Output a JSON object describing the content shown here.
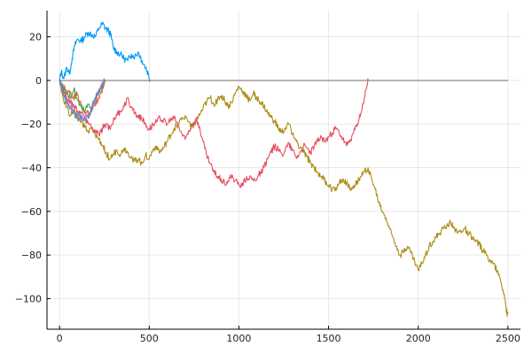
{
  "chart_data": {
    "type": "line",
    "title": "",
    "xlabel": "",
    "ylabel": "",
    "xlim": [
      -70,
      2570
    ],
    "ylim": [
      -114,
      32
    ],
    "xticks": [
      0,
      500,
      1000,
      1500,
      2000,
      2500
    ],
    "xtick_labels": [
      "0",
      "500",
      "1000",
      "1500",
      "2000",
      "2500"
    ],
    "yticks": [
      20,
      0,
      -20,
      -40,
      -60,
      -80,
      -100
    ],
    "ytick_labels": [
      "20",
      "0",
      "−20",
      "−40",
      "−60",
      "−80",
      "−100"
    ],
    "grid": true,
    "legend": "none",
    "series": [
      {
        "color": "#009AFA",
        "points": [
          [
            0,
            0
          ],
          [
            10,
            4
          ],
          [
            25,
            1
          ],
          [
            40,
            6
          ],
          [
            55,
            3
          ],
          [
            70,
            10
          ],
          [
            85,
            16
          ],
          [
            100,
            19
          ],
          [
            120,
            18
          ],
          [
            140,
            20
          ],
          [
            160,
            22
          ],
          [
            180,
            21
          ],
          [
            200,
            20
          ],
          [
            220,
            24
          ],
          [
            240,
            26
          ],
          [
            255,
            24
          ],
          [
            270,
            23
          ],
          [
            285,
            21
          ],
          [
            300,
            15
          ],
          [
            320,
            13
          ],
          [
            340,
            12
          ],
          [
            360,
            10
          ],
          [
            380,
            9
          ],
          [
            400,
            12
          ],
          [
            420,
            11
          ],
          [
            440,
            13
          ],
          [
            460,
            9
          ],
          [
            480,
            6
          ],
          [
            495,
            3
          ],
          [
            505,
            0
          ]
        ]
      },
      {
        "color": "#E26F46",
        "points": [
          [
            0,
            0
          ],
          [
            15,
            -4
          ],
          [
            30,
            -3
          ],
          [
            45,
            -6
          ],
          [
            60,
            -5
          ],
          [
            75,
            -8
          ],
          [
            90,
            -7
          ],
          [
            100,
            -6
          ],
          [
            115,
            -10
          ],
          [
            130,
            -13
          ],
          [
            150,
            -15
          ],
          [
            170,
            -16
          ],
          [
            185,
            -13
          ],
          [
            200,
            -10
          ],
          [
            215,
            -9
          ],
          [
            230,
            -6
          ],
          [
            245,
            -3
          ],
          [
            255,
            0
          ]
        ]
      },
      {
        "color": "#3EA44E",
        "points": [
          [
            0,
            0
          ],
          [
            20,
            -3
          ],
          [
            40,
            -6
          ],
          [
            60,
            -8
          ],
          [
            80,
            -4
          ],
          [
            100,
            -9
          ],
          [
            120,
            -12
          ],
          [
            140,
            -14
          ],
          [
            160,
            -11
          ],
          [
            180,
            -13
          ],
          [
            200,
            -8
          ],
          [
            220,
            -5
          ],
          [
            240,
            -3
          ],
          [
            250,
            0
          ]
        ]
      },
      {
        "color": "#C371D2",
        "points": [
          [
            0,
            0
          ],
          [
            20,
            -5
          ],
          [
            40,
            -9
          ],
          [
            60,
            -12
          ],
          [
            80,
            -14
          ],
          [
            100,
            -16
          ],
          [
            120,
            -18
          ],
          [
            140,
            -17
          ],
          [
            160,
            -15
          ],
          [
            180,
            -13
          ],
          [
            200,
            -8
          ],
          [
            220,
            -4
          ],
          [
            240,
            -2
          ],
          [
            250,
            0
          ]
        ]
      },
      {
        "color": "#AC8D18",
        "points": [
          [
            0,
            0
          ],
          [
            20,
            -8
          ],
          [
            40,
            -12
          ],
          [
            60,
            -16
          ],
          [
            80,
            -14
          ],
          [
            100,
            -17
          ],
          [
            120,
            -19
          ],
          [
            140,
            -21
          ],
          [
            160,
            -24
          ],
          [
            180,
            -22
          ],
          [
            200,
            -25
          ],
          [
            220,
            -27
          ],
          [
            240,
            -30
          ],
          [
            260,
            -33
          ],
          [
            280,
            -36
          ],
          [
            300,
            -34
          ],
          [
            320,
            -32
          ],
          [
            340,
            -34
          ],
          [
            360,
            -31
          ],
          [
            380,
            -33
          ],
          [
            400,
            -35
          ],
          [
            420,
            -37
          ],
          [
            440,
            -36
          ],
          [
            460,
            -38
          ],
          [
            480,
            -34
          ],
          [
            500,
            -36
          ],
          [
            520,
            -32
          ],
          [
            540,
            -30
          ],
          [
            560,
            -33
          ],
          [
            580,
            -31
          ],
          [
            600,
            -28
          ],
          [
            620,
            -25
          ],
          [
            640,
            -22
          ],
          [
            660,
            -20
          ],
          [
            680,
            -18
          ],
          [
            700,
            -16
          ],
          [
            720,
            -19
          ],
          [
            740,
            -21
          ],
          [
            760,
            -19
          ],
          [
            780,
            -16
          ],
          [
            800,
            -13
          ],
          [
            820,
            -10
          ],
          [
            840,
            -8
          ],
          [
            860,
            -11
          ],
          [
            880,
            -9
          ],
          [
            900,
            -7
          ],
          [
            920,
            -9
          ],
          [
            940,
            -12
          ],
          [
            960,
            -10
          ],
          [
            980,
            -6
          ],
          [
            1000,
            -3
          ],
          [
            1020,
            -5
          ],
          [
            1040,
            -7
          ],
          [
            1060,
            -9
          ],
          [
            1080,
            -6
          ],
          [
            1100,
            -8
          ],
          [
            1120,
            -10
          ],
          [
            1140,
            -12
          ],
          [
            1160,
            -15
          ],
          [
            1180,
            -17
          ],
          [
            1200,
            -19
          ],
          [
            1220,
            -22
          ],
          [
            1240,
            -24
          ],
          [
            1260,
            -22
          ],
          [
            1280,
            -20
          ],
          [
            1300,
            -24
          ],
          [
            1320,
            -28
          ],
          [
            1340,
            -31
          ],
          [
            1360,
            -33
          ],
          [
            1380,
            -35
          ],
          [
            1400,
            -38
          ],
          [
            1420,
            -40
          ],
          [
            1440,
            -42
          ],
          [
            1460,
            -44
          ],
          [
            1480,
            -46
          ],
          [
            1500,
            -48
          ],
          [
            1520,
            -50
          ],
          [
            1540,
            -49
          ],
          [
            1560,
            -47
          ],
          [
            1580,
            -45
          ],
          [
            1600,
            -47
          ],
          [
            1620,
            -50
          ],
          [
            1640,
            -48
          ],
          [
            1660,
            -46
          ],
          [
            1680,
            -44
          ],
          [
            1700,
            -42
          ],
          [
            1720,
            -40
          ],
          [
            1740,
            -45
          ],
          [
            1760,
            -50
          ],
          [
            1780,
            -56
          ],
          [
            1800,
            -60
          ],
          [
            1820,
            -63
          ],
          [
            1840,
            -68
          ],
          [
            1860,
            -72
          ],
          [
            1880,
            -76
          ],
          [
            1900,
            -80
          ],
          [
            1920,
            -78
          ],
          [
            1940,
            -76
          ],
          [
            1960,
            -79
          ],
          [
            1980,
            -83
          ],
          [
            2000,
            -87
          ],
          [
            2020,
            -84
          ],
          [
            2040,
            -80
          ],
          [
            2060,
            -76
          ],
          [
            2080,
            -74
          ],
          [
            2100,
            -72
          ],
          [
            2120,
            -70
          ],
          [
            2140,
            -68
          ],
          [
            2160,
            -66
          ],
          [
            2180,
            -65
          ],
          [
            2200,
            -67
          ],
          [
            2220,
            -70
          ],
          [
            2240,
            -69
          ],
          [
            2260,
            -68
          ],
          [
            2280,
            -70
          ],
          [
            2300,
            -72
          ],
          [
            2320,
            -74
          ],
          [
            2340,
            -75
          ],
          [
            2360,
            -78
          ],
          [
            2380,
            -80
          ],
          [
            2400,
            -82
          ],
          [
            2420,
            -84
          ],
          [
            2440,
            -87
          ],
          [
            2460,
            -92
          ],
          [
            2480,
            -98
          ],
          [
            2490,
            -104
          ],
          [
            2495,
            -108
          ],
          [
            2500,
            -106
          ]
        ]
      },
      {
        "color": "#E64F63",
        "points": [
          [
            0,
            0
          ],
          [
            20,
            -5
          ],
          [
            40,
            -8
          ],
          [
            60,
            -10
          ],
          [
            80,
            -12
          ],
          [
            100,
            -14
          ],
          [
            120,
            -15
          ],
          [
            140,
            -17
          ],
          [
            160,
            -19
          ],
          [
            180,
            -22
          ],
          [
            200,
            -24
          ],
          [
            220,
            -25
          ],
          [
            240,
            -22
          ],
          [
            260,
            -20
          ],
          [
            280,
            -22
          ],
          [
            300,
            -18
          ],
          [
            320,
            -16
          ],
          [
            340,
            -14
          ],
          [
            360,
            -12
          ],
          [
            380,
            -8
          ],
          [
            400,
            -12
          ],
          [
            420,
            -15
          ],
          [
            440,
            -16
          ],
          [
            460,
            -18
          ],
          [
            480,
            -20
          ],
          [
            500,
            -22
          ],
          [
            520,
            -20
          ],
          [
            540,
            -19
          ],
          [
            560,
            -17
          ],
          [
            580,
            -18
          ],
          [
            600,
            -20
          ],
          [
            620,
            -18
          ],
          [
            640,
            -17
          ],
          [
            660,
            -20
          ],
          [
            680,
            -24
          ],
          [
            700,
            -27
          ],
          [
            720,
            -23
          ],
          [
            740,
            -20
          ],
          [
            760,
            -18
          ],
          [
            780,
            -21
          ],
          [
            800,
            -28
          ],
          [
            820,
            -34
          ],
          [
            840,
            -38
          ],
          [
            860,
            -42
          ],
          [
            880,
            -44
          ],
          [
            900,
            -45
          ],
          [
            920,
            -47
          ],
          [
            940,
            -46
          ],
          [
            960,
            -44
          ],
          [
            980,
            -46
          ],
          [
            1000,
            -48
          ],
          [
            1020,
            -47
          ],
          [
            1040,
            -45
          ],
          [
            1060,
            -44
          ],
          [
            1080,
            -46
          ],
          [
            1100,
            -45
          ],
          [
            1120,
            -42
          ],
          [
            1140,
            -40
          ],
          [
            1160,
            -36
          ],
          [
            1180,
            -33
          ],
          [
            1200,
            -30
          ],
          [
            1220,
            -32
          ],
          [
            1240,
            -34
          ],
          [
            1260,
            -31
          ],
          [
            1280,
            -29
          ],
          [
            1300,
            -32
          ],
          [
            1320,
            -35
          ],
          [
            1340,
            -33
          ],
          [
            1360,
            -30
          ],
          [
            1380,
            -31
          ],
          [
            1400,
            -33
          ],
          [
            1420,
            -30
          ],
          [
            1440,
            -28
          ],
          [
            1460,
            -26
          ],
          [
            1480,
            -28
          ],
          [
            1500,
            -26
          ],
          [
            1520,
            -24
          ],
          [
            1540,
            -22
          ],
          [
            1560,
            -24
          ],
          [
            1580,
            -27
          ],
          [
            1600,
            -30
          ],
          [
            1620,
            -27
          ],
          [
            1640,
            -24
          ],
          [
            1660,
            -20
          ],
          [
            1680,
            -15
          ],
          [
            1700,
            -8
          ],
          [
            1715,
            -2
          ],
          [
            1720,
            0
          ]
        ]
      },
      {
        "color": "#5B8EC8",
        "points": [
          [
            0,
            0
          ],
          [
            20,
            -6
          ],
          [
            40,
            -10
          ],
          [
            60,
            -13
          ],
          [
            80,
            -15
          ],
          [
            100,
            -17
          ],
          [
            120,
            -16
          ],
          [
            140,
            -18
          ],
          [
            160,
            -17
          ],
          [
            180,
            -12
          ],
          [
            200,
            -8
          ],
          [
            220,
            -5
          ],
          [
            240,
            -2
          ],
          [
            250,
            0
          ]
        ]
      },
      {
        "color": "#8E7973",
        "points": [
          [
            0,
            0
          ],
          [
            2500,
            0
          ]
        ]
      }
    ]
  }
}
